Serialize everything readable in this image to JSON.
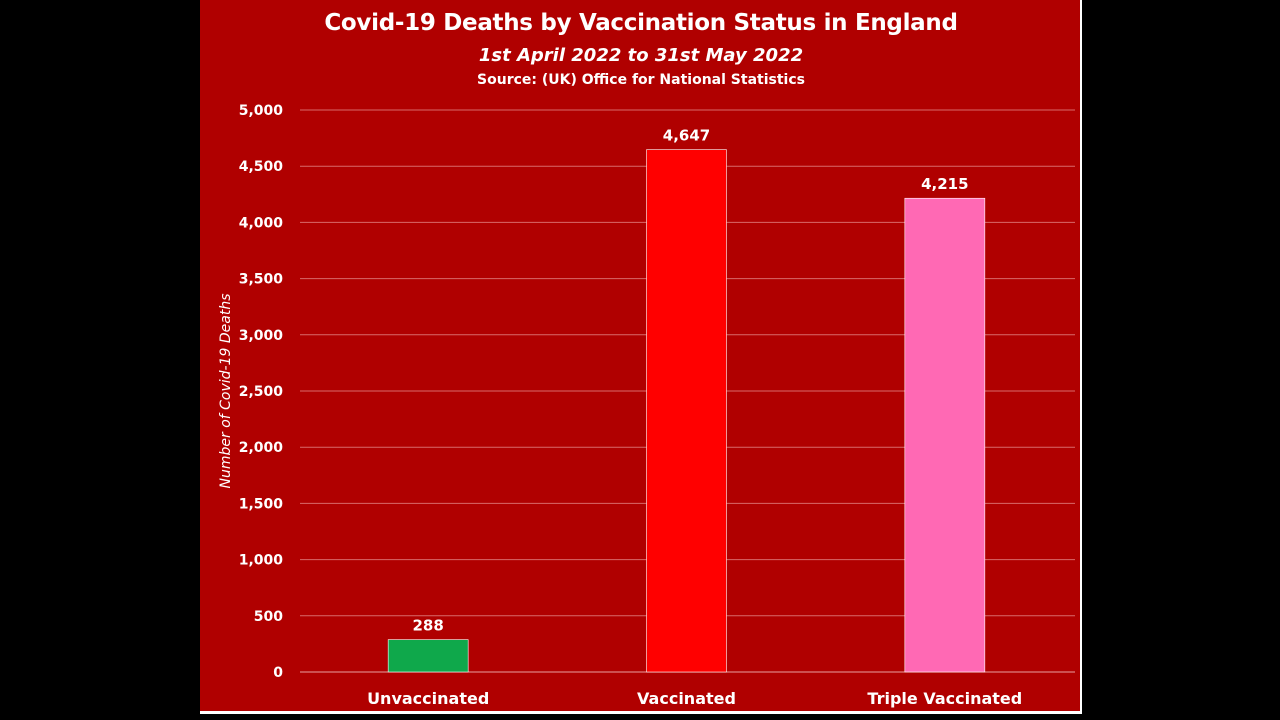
{
  "chart_data": {
    "type": "bar",
    "title": "Covid-19 Deaths by Vaccination Status in England",
    "subtitle": "1st April 2022 to 31st May 2022",
    "source": "Source: (UK) Office for National Statistics",
    "xlabel": "",
    "ylabel": "Number of Covid-19 Deaths",
    "categories": [
      "Unvaccinated",
      "Vaccinated",
      "Triple Vaccinated"
    ],
    "values": [
      288,
      4647,
      4215
    ],
    "data_labels": [
      "288",
      "4,647",
      "4,215"
    ],
    "bar_colors": [
      "#0fa84b",
      "#ff0000",
      "#ff69b4"
    ],
    "ylim": [
      0,
      5000
    ],
    "yticks": [
      0,
      500,
      1000,
      1500,
      2000,
      2500,
      3000,
      3500,
      4000,
      4500,
      5000
    ],
    "ytick_labels": [
      "0",
      "500",
      "1,000",
      "1,500",
      "2,000",
      "2,500",
      "3,000",
      "3,500",
      "4,000",
      "4,500",
      "5,000"
    ],
    "grid": true,
    "legend": "none",
    "background_color": "#b00000"
  }
}
